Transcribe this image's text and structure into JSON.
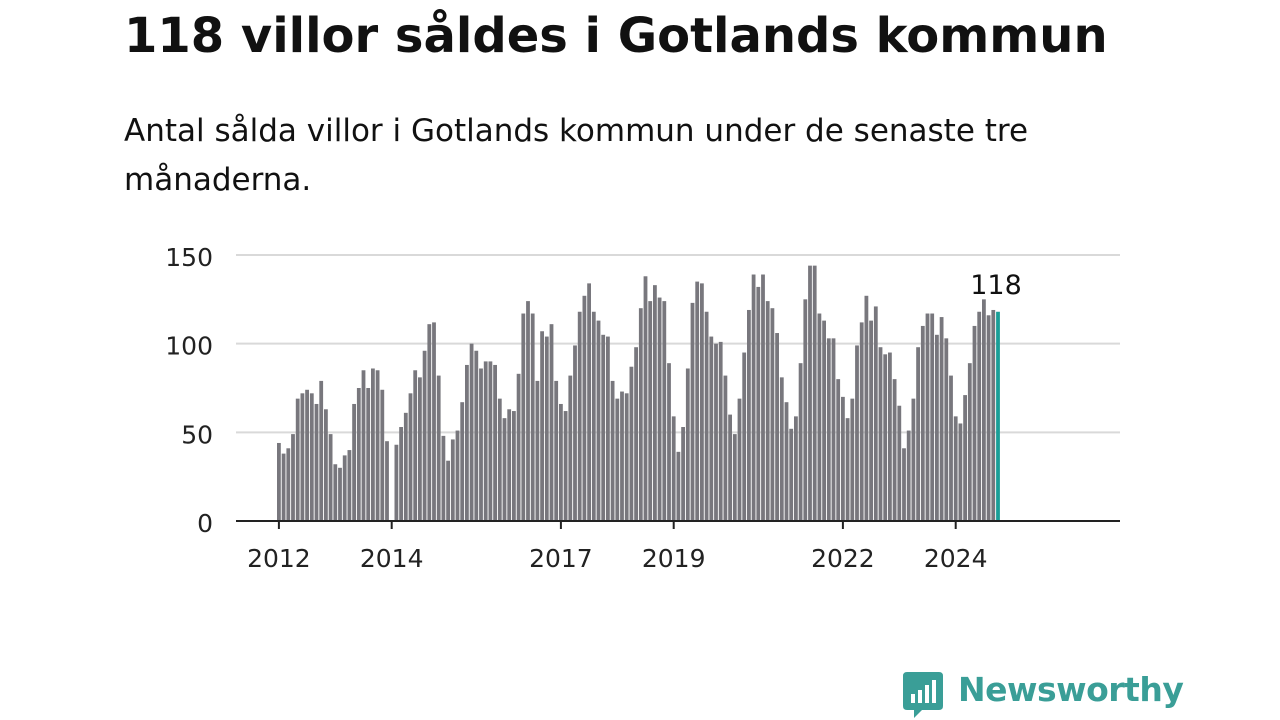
{
  "title": "118 villor såldes i Gotlands kommun",
  "subtitle": "Antal sålda villor i Gotlands kommun under de senaste tre månaderna.",
  "logo": {
    "text": "Newsworthy",
    "icon": "chart-bubble-icon"
  },
  "colors": {
    "bar": "#78777d",
    "highlight": "#1a9e97",
    "grid": "#d9d9d9",
    "axis": "#222222",
    "brand": "#3a9e97"
  },
  "chart_data": {
    "type": "bar",
    "x_start": "2012-01",
    "y_ticks": [
      0,
      50,
      100,
      150
    ],
    "x_ticks": [
      {
        "label": "2012",
        "month": "2012-01"
      },
      {
        "label": "2014",
        "month": "2014-01"
      },
      {
        "label": "2017",
        "month": "2017-01"
      },
      {
        "label": "2019",
        "month": "2019-01"
      },
      {
        "label": "2022",
        "month": "2022-01"
      },
      {
        "label": "2024",
        "month": "2024-01"
      }
    ],
    "ylim": [
      0,
      150
    ],
    "grid": true,
    "highlight_label": "118",
    "values": [
      44,
      38,
      41,
      49,
      69,
      72,
      74,
      72,
      66,
      79,
      63,
      49,
      32,
      30,
      37,
      40,
      66,
      75,
      85,
      75,
      86,
      85,
      74,
      45,
      null,
      43,
      53,
      61,
      72,
      85,
      81,
      96,
      111,
      112,
      82,
      48,
      34,
      46,
      51,
      67,
      88,
      100,
      96,
      86,
      90,
      90,
      88,
      69,
      58,
      63,
      62,
      83,
      117,
      124,
      117,
      79,
      107,
      104,
      111,
      79,
      66,
      62,
      82,
      99,
      118,
      127,
      134,
      118,
      113,
      105,
      104,
      79,
      69,
      73,
      72,
      87,
      98,
      120,
      138,
      124,
      133,
      126,
      124,
      89,
      59,
      39,
      53,
      86,
      123,
      135,
      134,
      118,
      104,
      100,
      101,
      82,
      60,
      49,
      69,
      95,
      119,
      139,
      132,
      139,
      124,
      120,
      106,
      81,
      67,
      52,
      59,
      89,
      125,
      144,
      144,
      117,
      113,
      103,
      103,
      80,
      70,
      58,
      69,
      99,
      112,
      127,
      113,
      121,
      98,
      94,
      95,
      80,
      65,
      41,
      51,
      69,
      98,
      110,
      117,
      117,
      105,
      115,
      103,
      82,
      59,
      55,
      71,
      89,
      110,
      118,
      125,
      116,
      119,
      118
    ]
  }
}
